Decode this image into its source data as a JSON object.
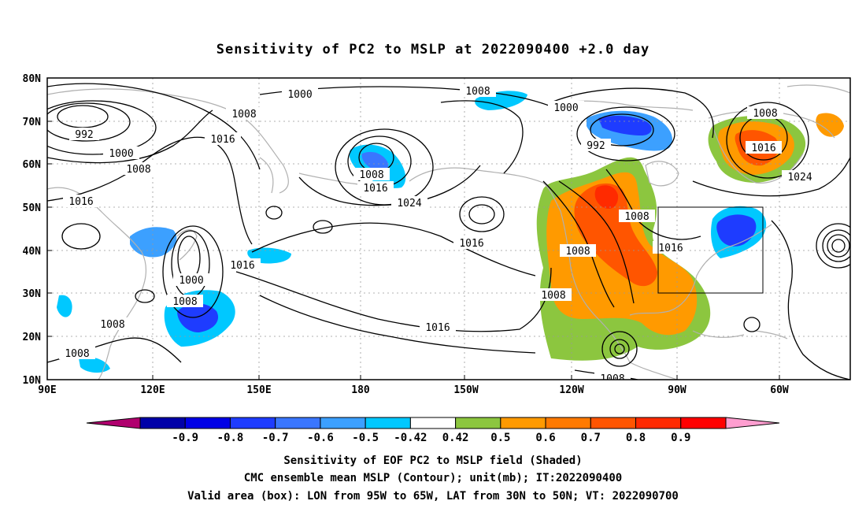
{
  "title": "Sensitivity of PC2 to MSLP at 2022090400 +2.0 day",
  "lat_labels": [
    "80N",
    "70N",
    "60N",
    "50N",
    "40N",
    "30N",
    "20N",
    "10N"
  ],
  "lon_labels": [
    "90E",
    "120E",
    "150E",
    "180",
    "150W",
    "120W",
    "90W",
    "60W"
  ],
  "contour_labels": [
    {
      "text": "1000"
    },
    {
      "text": "1008"
    },
    {
      "text": "992"
    },
    {
      "text": "1000"
    },
    {
      "text": "1008"
    },
    {
      "text": "1016"
    },
    {
      "text": "1016"
    },
    {
      "text": "1008"
    },
    {
      "text": "1016"
    },
    {
      "text": "1024"
    },
    {
      "text": "1016"
    },
    {
      "text": "1000"
    },
    {
      "text": "1008"
    },
    {
      "text": "1016"
    },
    {
      "text": "1008"
    },
    {
      "text": "1008"
    },
    {
      "text": "1000"
    },
    {
      "text": "992"
    },
    {
      "text": "1008"
    },
    {
      "text": "1016"
    },
    {
      "text": "1024"
    },
    {
      "text": "1008"
    },
    {
      "text": "1008"
    },
    {
      "text": "1016"
    },
    {
      "text": "1008"
    },
    {
      "text": "1008"
    },
    {
      "text": "1008"
    }
  ],
  "colorbar": {
    "colors": [
      "#b0006e",
      "#0000a8",
      "#0000e6",
      "#1e3cff",
      "#3a76ff",
      "#3ca0ff",
      "#00c8ff",
      "#ffffff",
      "#8cc63f",
      "#ff9a00",
      "#ff7a00",
      "#ff5500",
      "#ff2a00",
      "#ff0000",
      "#ff9ed0"
    ],
    "labels": [
      "-0.9",
      "-0.8",
      "-0.7",
      "-0.6",
      "-0.5",
      "-0.42",
      "0.42",
      "0.5",
      "0.6",
      "0.7",
      "0.8",
      "0.9"
    ]
  },
  "footer": {
    "line1": "Sensitivity of EOF PC2 to MSLP field (Shaded)",
    "line2": "CMC ensemble mean MSLP (Contour); unit(mb); IT:2022090400",
    "line3": "Valid area (box): LON from 95W to 65W, LAT from 30N to 50N; VT: 2022090700"
  },
  "valid_box": {
    "lon_from": "95W",
    "lon_to": "65W",
    "lat_from": "30N",
    "lat_to": "50N"
  }
}
